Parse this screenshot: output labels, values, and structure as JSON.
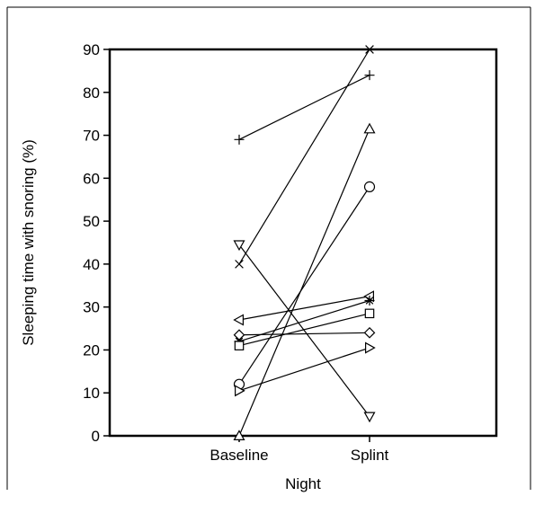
{
  "chart_data": {
    "type": "line",
    "xlabel": "Night",
    "ylabel": "Sleeping time with snoring (%)",
    "categories": [
      "Baseline",
      "Splint"
    ],
    "ylim": [
      0,
      90
    ],
    "yticks": [
      0,
      10,
      20,
      30,
      40,
      50,
      60,
      70,
      80,
      90
    ],
    "grid": false,
    "series": [
      {
        "marker": "plus",
        "values": [
          69,
          84
        ]
      },
      {
        "marker": "cross",
        "values": [
          40,
          90
        ]
      },
      {
        "marker": "triangle-down",
        "values": [
          44.5,
          4.5
        ]
      },
      {
        "marker": "triangle-up",
        "values": [
          0,
          71.5
        ]
      },
      {
        "marker": "circle",
        "values": [
          12,
          58
        ]
      },
      {
        "marker": "triangle-left",
        "values": [
          27,
          32.5
        ]
      },
      {
        "marker": "star",
        "values": [
          22,
          31.5
        ]
      },
      {
        "marker": "square",
        "values": [
          21,
          28.5
        ]
      },
      {
        "marker": "diamond",
        "values": [
          23.5,
          24
        ]
      },
      {
        "marker": "triangle-right",
        "values": [
          10.5,
          20.5
        ]
      }
    ]
  }
}
